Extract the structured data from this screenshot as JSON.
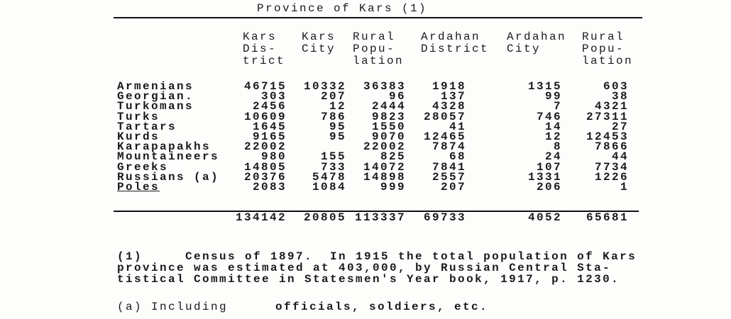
{
  "title": "Province of Kars (1)",
  "columns": [
    "Kars\nDis-\ntrict",
    "Kars\nCity",
    "Rural\nPopu-\nlation",
    "Ardahan\nDistrict",
    "Ardahan\nCity",
    "Rural\nPopu-\nlation"
  ],
  "rows": [
    {
      "label": "Armenians",
      "values": [
        "46715",
        "10332",
        "36383",
        "1918",
        "1315",
        "603"
      ]
    },
    {
      "label": "Georgian.",
      "values": [
        "303",
        "207",
        "96",
        "137",
        "99",
        "38"
      ]
    },
    {
      "label": "Turkomans",
      "values": [
        "2456",
        "12",
        "2444",
        "4328",
        "7",
        "4321"
      ]
    },
    {
      "label": "Turks",
      "values": [
        "10609",
        "786",
        "9823",
        "28057",
        "746",
        "27311"
      ]
    },
    {
      "label": "Tartars",
      "values": [
        "1645",
        "95",
        "1550",
        "41",
        "14",
        "27"
      ]
    },
    {
      "label": "Kurds",
      "values": [
        "9165",
        "95",
        "9070",
        "12465",
        "12",
        "12453"
      ]
    },
    {
      "label": "Karapapakhs",
      "values": [
        "22002",
        "",
        "22002",
        "7874",
        "8",
        "7866"
      ]
    },
    {
      "label": "Mountaineers",
      "values": [
        "980",
        "155",
        "825",
        "68",
        "24",
        "44"
      ]
    },
    {
      "label": "Greeks",
      "values": [
        "14805",
        "733",
        "14072",
        "7841",
        "107",
        "7734"
      ]
    },
    {
      "label": "Russians (a)",
      "values": [
        "20376",
        "5478",
        "14898",
        "2557",
        "1331",
        "1226"
      ]
    },
    {
      "label": "Poles",
      "values": [
        "2083",
        "1084",
        "999",
        "207",
        "206",
        "1"
      ]
    }
  ],
  "totals": [
    "134142",
    "20805",
    "113337",
    "69733",
    "4052",
    "65681"
  ],
  "footnotes": {
    "f1": "(1)     Census of 1897.  In 1915 the total population of Kars\nprovince was estimated at 403,000, by Russian Central Sta-\ntistical Committee in Statesmen's Year book, 1917, p. 1230.",
    "fa_marker": "(a) Including",
    "fa_text": "officials, soldiers, etc."
  }
}
